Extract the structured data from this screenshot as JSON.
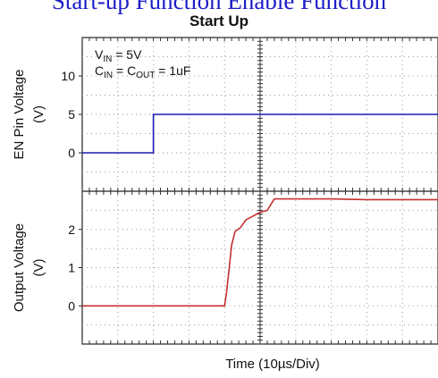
{
  "caption": "Start-up Function Enable Function",
  "chart_data": [
    {
      "type": "line",
      "title": "Start Up",
      "xlabel": "Time (10µs/Div)",
      "ylabel": "EN Pin Voltage (V)",
      "ylabel_lines": [
        "EN Pin Voltage",
        "(V)"
      ],
      "yticks": [
        0,
        5,
        10
      ],
      "ylim": [
        -5,
        15
      ],
      "xlim": [
        0,
        10
      ],
      "xdivisions": 10,
      "annotations": [
        "V_IN = 5V",
        "C_IN = C_OUT = 1uF"
      ],
      "series": [
        {
          "color": "#1a1ab4",
          "x": [
            0,
            2.0,
            2.0,
            10
          ],
          "y": [
            0,
            0,
            5,
            5
          ]
        }
      ]
    },
    {
      "type": "line",
      "title": "",
      "xlabel": "Time (10µs/Div)",
      "ylabel": "Output Voltage (V)",
      "ylabel_lines": [
        "Output Voltage",
        "(V)"
      ],
      "yticks": [
        0,
        1,
        2
      ],
      "ylim": [
        -1,
        3
      ],
      "xlim": [
        0,
        10
      ],
      "series": [
        {
          "color": "#c43030",
          "x": [
            0,
            4.0,
            4.05,
            4.12,
            4.2,
            4.3,
            4.45,
            4.6,
            4.8,
            5.0,
            5.2,
            5.3,
            5.4,
            5.5,
            5.6,
            6.0,
            7.0,
            8.0,
            9.0,
            10
          ],
          "y": [
            0,
            0,
            0.3,
            0.9,
            1.6,
            1.95,
            2.05,
            2.25,
            2.35,
            2.45,
            2.5,
            2.65,
            2.8,
            2.8,
            2.8,
            2.8,
            2.8,
            2.78,
            2.78,
            2.78
          ]
        }
      ]
    }
  ]
}
